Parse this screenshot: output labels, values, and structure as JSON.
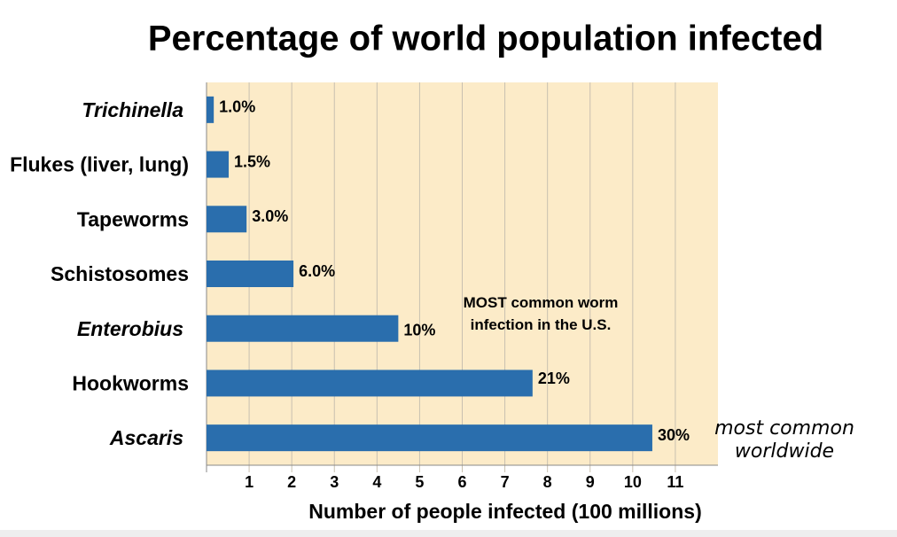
{
  "chart_data": {
    "type": "hbar",
    "title": "Percentage of world population infected",
    "x_label": "Number of people infected (100 millions)",
    "categories": [
      "Trichinella",
      "Flukes (liver, lung)",
      "Tapeworms",
      "Schistosomes",
      "Enterobius",
      "Hookworms",
      "Ascaris"
    ],
    "category_styles": [
      "italic",
      "normal",
      "normal",
      "normal",
      "italic",
      "normal",
      "italic"
    ],
    "values": [
      0.17,
      0.52,
      0.94,
      2.04,
      4.5,
      7.65,
      10.46
    ],
    "bar_labels": [
      "1.0%",
      "1.5%",
      "3.0%",
      "6.0%",
      "10%",
      "21%",
      "30%"
    ],
    "color": "#2a6ead",
    "background": "#fcebc8",
    "xlim": [
      0,
      12
    ],
    "xticks": [
      1,
      2,
      3,
      4,
      5,
      6,
      7,
      8,
      9,
      10,
      11
    ],
    "grid": true,
    "annotations": [
      {
        "text": [
          "MOST common worm",
          "infection in the U.S."
        ],
        "color": "#e8141b",
        "category": 4
      },
      {
        "text": [
          "most common",
          "worldwide"
        ],
        "color": "#8a5cc4",
        "category": 6
      }
    ]
  }
}
